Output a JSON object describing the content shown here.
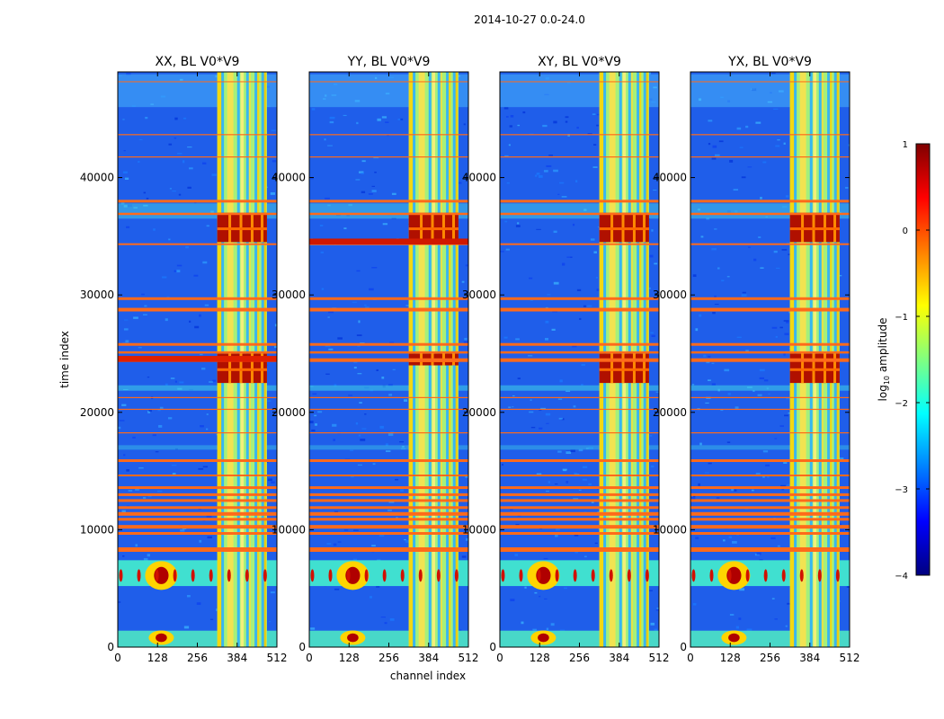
{
  "figure_title": "2014-10-27 0.0-24.0",
  "colormap_colors": [
    "#00007f",
    "#0000ff",
    "#0080ff",
    "#00ffff",
    "#80ff80",
    "#ffff00",
    "#ff8000",
    "#ff0000",
    "#7f0000"
  ],
  "chart_data": [
    {
      "type": "heatmap",
      "title": "XX, BL V0*V9",
      "xlabel": "",
      "ylabel": "time index",
      "xlim": [
        0,
        512
      ],
      "ylim": [
        0,
        49000
      ],
      "xticks": [
        0,
        128,
        256,
        384,
        512
      ],
      "yticks": [
        0,
        10000,
        20000,
        30000,
        40000
      ],
      "strong_rfi_channel_range": [
        320,
        480
      ],
      "red_burst_time_ranges": [
        [
          34500,
          37000
        ],
        [
          22500,
          25000
        ]
      ]
    },
    {
      "type": "heatmap",
      "title": "YY, BL V0*V9",
      "xlabel": "channel index",
      "ylabel": "",
      "xlim": [
        0,
        512
      ],
      "ylim": [
        0,
        49000
      ],
      "xticks": [
        0,
        128,
        256,
        384,
        512
      ],
      "yticks": [
        0,
        10000,
        20000,
        30000,
        40000
      ],
      "strong_rfi_channel_range": [
        320,
        480
      ],
      "red_burst_time_ranges": [
        [
          34500,
          37000
        ],
        [
          24000,
          25000
        ]
      ]
    },
    {
      "type": "heatmap",
      "title": "XY, BL V0*V9",
      "xlabel": "",
      "ylabel": "",
      "xlim": [
        0,
        512
      ],
      "ylim": [
        0,
        49000
      ],
      "xticks": [
        0,
        128,
        256,
        384,
        512
      ],
      "yticks": [
        0,
        10000,
        20000,
        30000,
        40000
      ],
      "strong_rfi_channel_range": [
        320,
        480
      ],
      "red_burst_time_ranges": [
        [
          34500,
          37000
        ],
        [
          22500,
          25000
        ]
      ]
    },
    {
      "type": "heatmap",
      "title": "YX, BL V0*V9",
      "xlabel": "",
      "ylabel": "",
      "xlim": [
        0,
        512
      ],
      "ylim": [
        0,
        49000
      ],
      "xticks": [
        0,
        128,
        256,
        384,
        512
      ],
      "yticks": [
        0,
        10000,
        20000,
        30000,
        40000
      ],
      "strong_rfi_channel_range": [
        320,
        480
      ],
      "red_burst_time_ranges": [
        [
          34500,
          37000
        ],
        [
          22500,
          25000
        ]
      ]
    }
  ],
  "colorbar": {
    "label_main": "log",
    "label_sub": "10",
    "label_rest": " amplitude",
    "range": [
      -4,
      1
    ],
    "ticks": [
      1,
      0,
      -1,
      -2,
      -3,
      -4
    ],
    "tick_labels": [
      "1",
      "0",
      "−1",
      "−2",
      "−3",
      "−4"
    ]
  }
}
